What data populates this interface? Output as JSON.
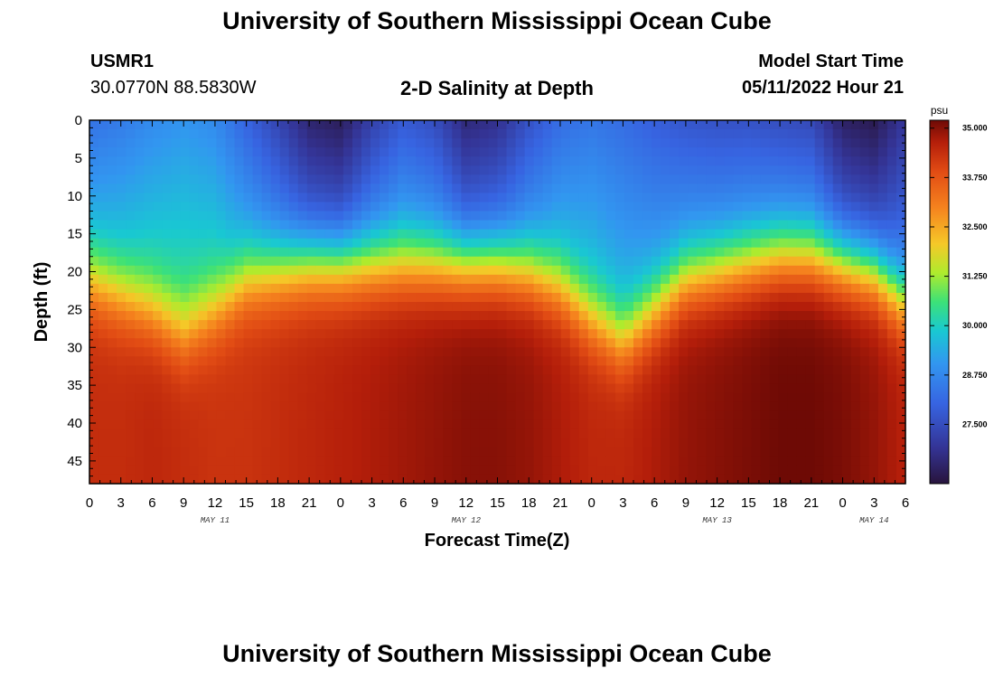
{
  "header": {
    "title": "University of Southern Mississippi Ocean Cube",
    "station_id": "USMR1",
    "coordinates": "30.0770N  88.5830W",
    "plot_title": "2-D Salinity at Depth",
    "model_start_label": "Model Start Time",
    "model_start_value": "05/11/2022 Hour 21"
  },
  "footer": {
    "title": "University of Southern Mississippi Ocean Cube"
  },
  "chart_data": {
    "type": "heatmap",
    "title": "2-D Salinity at Depth",
    "xlabel": "Forecast Time(Z)",
    "ylabel": "Depth (ft)",
    "x_tick_labels": [
      "0",
      "3",
      "6",
      "9",
      "12",
      "15",
      "18",
      "21",
      "0",
      "3",
      "6",
      "9",
      "12",
      "15",
      "18",
      "21",
      "0",
      "3",
      "6",
      "9",
      "12",
      "15",
      "18",
      "21",
      "0",
      "3",
      "6"
    ],
    "x_range_hours": [
      0,
      78
    ],
    "x_day_labels": [
      {
        "label": "MAY 11",
        "hour": 12
      },
      {
        "label": "MAY 12",
        "hour": 36
      },
      {
        "label": "MAY 13",
        "hour": 60
      },
      {
        "label": "MAY 14",
        "hour": 75
      }
    ],
    "y_ticks": [
      0,
      5,
      10,
      15,
      20,
      25,
      30,
      35,
      40,
      45
    ],
    "y_range": [
      0,
      48
    ],
    "y_inverted": true,
    "colorbar": {
      "unit": "psu",
      "ticks": [
        "35.000",
        "33.750",
        "32.500",
        "31.250",
        "30.000",
        "28.750",
        "27.500"
      ],
      "tick_values": [
        35.0,
        33.75,
        32.5,
        31.25,
        30.0,
        28.75,
        27.5
      ],
      "range": [
        26.0,
        35.2
      ]
    },
    "field_description": {
      "halocline_depth_by_hour": [
        [
          0,
          17
        ],
        [
          3,
          19
        ],
        [
          6,
          21
        ],
        [
          9,
          24
        ],
        [
          12,
          21
        ],
        [
          15,
          17
        ],
        [
          18,
          16
        ],
        [
          21,
          15
        ],
        [
          24,
          15
        ],
        [
          27,
          15
        ],
        [
          30,
          15
        ],
        [
          33,
          15
        ],
        [
          36,
          15
        ],
        [
          39,
          15
        ],
        [
          42,
          16
        ],
        [
          45,
          18
        ],
        [
          48,
          22
        ],
        [
          51,
          25
        ],
        [
          54,
          21
        ],
        [
          57,
          17
        ],
        [
          60,
          16
        ],
        [
          63,
          15
        ],
        [
          66,
          14
        ],
        [
          69,
          14
        ],
        [
          72,
          15
        ],
        [
          75,
          16
        ],
        [
          78,
          20
        ]
      ],
      "surface_salinity_by_hour": [
        [
          0,
          28.3
        ],
        [
          3,
          28.5
        ],
        [
          6,
          28.8
        ],
        [
          9,
          29.0
        ],
        [
          12,
          28.8
        ],
        [
          15,
          28.0
        ],
        [
          18,
          27.3
        ],
        [
          21,
          26.5
        ],
        [
          24,
          26.3
        ],
        [
          27,
          27.2
        ],
        [
          30,
          27.8
        ],
        [
          33,
          27.5
        ],
        [
          36,
          26.6
        ],
        [
          39,
          26.8
        ],
        [
          42,
          27.6
        ],
        [
          45,
          28.2
        ],
        [
          48,
          28.4
        ],
        [
          51,
          28.2
        ],
        [
          54,
          27.9
        ],
        [
          57,
          27.7
        ],
        [
          60,
          27.6
        ],
        [
          63,
          27.6
        ],
        [
          66,
          27.5
        ],
        [
          69,
          27.4
        ],
        [
          72,
          26.4
        ],
        [
          75,
          26.2
        ],
        [
          78,
          27.0
        ]
      ],
      "bottom_salinity_by_hour": [
        [
          0,
          34.4
        ],
        [
          3,
          34.4
        ],
        [
          6,
          34.5
        ],
        [
          9,
          34.4
        ],
        [
          12,
          34.3
        ],
        [
          15,
          34.3
        ],
        [
          18,
          34.4
        ],
        [
          21,
          34.5
        ],
        [
          24,
          34.6
        ],
        [
          27,
          34.7
        ],
        [
          30,
          34.8
        ],
        [
          33,
          34.9
        ],
        [
          36,
          35.0
        ],
        [
          39,
          35.0
        ],
        [
          42,
          34.9
        ],
        [
          45,
          34.7
        ],
        [
          48,
          34.5
        ],
        [
          51,
          34.5
        ],
        [
          54,
          34.7
        ],
        [
          57,
          34.9
        ],
        [
          60,
          35.0
        ],
        [
          63,
          35.1
        ],
        [
          66,
          35.2
        ],
        [
          69,
          35.2
        ],
        [
          72,
          35.1
        ],
        [
          75,
          34.9
        ],
        [
          78,
          34.6
        ]
      ]
    }
  }
}
